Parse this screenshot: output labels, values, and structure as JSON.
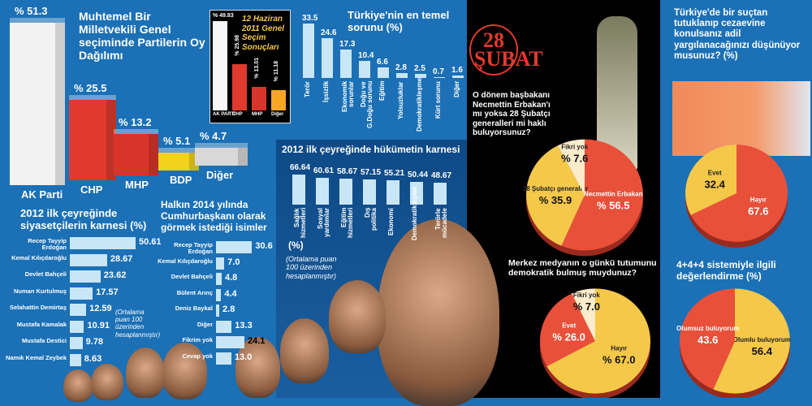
{
  "texts": {
    "main_title": "Muhtemel Bir Milletvekili Genel seçiminde Partilerin Oy Dağılımı",
    "inset_title": "12 Haziran 2011 Genel Seçim Sonuçları",
    "problem_title": "Türkiye'nin en temel sorunu (%)",
    "gov_title": "2012 ilk çeyreğinde hükümetin karnesi",
    "gov_unit": "(%)",
    "gov_note": "(Ortalama puan 100 üzerinden hesaplanmıştır)",
    "pol_title": "2012 ilk çeyreğinde siyasetçilerin karnesi  (%)",
    "pol_note": "(Ortalama puan 100 üzerinden hesaplanmıştır)",
    "pres_title": "Halkın 2014 yılında Cumhurbaşkanı olarak görmek istediği isimler",
    "subat_logo": "28 ŞUBAT",
    "subat_q": "O dönem başbakanı Necmettin Erbakan'ı mı yoksa 28 Şubatçı generalleri mi haklı buluyorsunuz?",
    "jail_q": "Türkiye'de bir suçtan tutuklanıp cezaevine konulsanız adil yargılanacağınızı düşünüyor musunuz? (%)",
    "media_q": "Merkez medyanın o günkü tutumunu demokratik bulmuş muydunuz?",
    "edu_q": "4+4+4  sistemiyle ilgili değerlendirme (%)"
  },
  "colors": {
    "bg": "#1b70b6",
    "bar": "#c9e6f7",
    "red": "#e8503a",
    "yellow": "#f5c84a",
    "cream": "#fbeccb",
    "ak": "#f2f2f2",
    "chp": "#e03a2e",
    "mhp": "#d9342a",
    "bdp": "#f2d21c",
    "other": "#d8d8d8"
  },
  "chart_data": [
    {
      "id": "main",
      "type": "bar",
      "title": "Muhtemel Bir Milletvekili Genel seçiminde Partilerin Oy Dağılımı",
      "categories": [
        "AK Parti",
        "CHP",
        "MHP",
        "BDP",
        "Diğer"
      ],
      "values": [
        51.3,
        25.5,
        13.2,
        5.1,
        4.7
      ],
      "labels": [
        "% 51.3",
        "% 25.5",
        "% 13.2",
        "% 5.1",
        "% 4.7"
      ]
    },
    {
      "id": "inset",
      "type": "bar",
      "title": "12 Haziran 2011 Genel Seçim Sonuçları",
      "categories": [
        "AK PARTİ",
        "CHP",
        "MHP",
        "Diğer"
      ],
      "values": [
        49.83,
        25.98,
        13.01,
        11.18
      ],
      "labels": [
        "% 49.83",
        "% 25.98",
        "% 13.01",
        "% 11.18"
      ]
    },
    {
      "id": "problem",
      "type": "bar",
      "title": "Türkiye'nin en temel sorunu (%)",
      "categories": [
        "Terör",
        "İşsizlik",
        "Ekonomik sorunlar",
        "Doğu ve G.Doğu sorunu",
        "Eğitim",
        "Yolsuzluklar",
        "Demokratikleşme",
        "Kürt sorunu",
        "Diğer"
      ],
      "values": [
        33.5,
        24.6,
        17.3,
        10.4,
        6.6,
        2.8,
        2.5,
        0.7,
        1.6
      ],
      "labels": [
        "33.5",
        "24.6",
        "17.3",
        "10.4",
        "6.6",
        "2.8",
        "2.5",
        "0.7",
        "1.6"
      ]
    },
    {
      "id": "gov",
      "type": "bar",
      "title": "2012 ilk çeyreğinde hükümetin karnesi",
      "categories": [
        "Sağlık hizmetleri",
        "Sosyal yardımlar",
        "Eğitim hizmetleri",
        "Dış politika",
        "Ekonomi",
        "Demokratikleşme",
        "Terörle mücadele"
      ],
      "values": [
        66.64,
        60.61,
        58.67,
        57.15,
        55.21,
        50.44,
        48.67
      ],
      "labels": [
        "66.64",
        "60.61",
        "58.67",
        "57.15",
        "55.21",
        "50.44",
        "48.67"
      ]
    },
    {
      "id": "pol",
      "type": "hbar",
      "title": "2012 ilk çeyreğinde siyasetçilerin karnesi (%)",
      "categories": [
        "Recep Tayyip Erdoğan",
        "Kemal Kılıçdaroğlu",
        "Devlet Bahçeli",
        "Numan Kurtulmuş",
        "Selahattin Demirtaş",
        "Mustafa Kamalak",
        "Mustafa Destici",
        "Namık Kemal Zeybek"
      ],
      "values": [
        50.61,
        28.67,
        23.62,
        17.57,
        12.59,
        10.91,
        9.78,
        8.63
      ],
      "labels": [
        "50.61",
        "28.67",
        "23.62",
        "17.57",
        "12.59",
        "10.91",
        "9.78",
        "8.63"
      ]
    },
    {
      "id": "pres",
      "type": "hbar",
      "title": "Halkın 2014 yılında Cumhurbaşkanı olarak görmek istediği isimler",
      "categories": [
        "Recep Tayyip Erdoğan",
        "Kemal Kılıçdaroğlu",
        "Devlet Bahçeli",
        "Bülent Arınç",
        "Deniz Baykal",
        "Diğer",
        "Fikrim yok",
        "Cevap yok"
      ],
      "values": [
        30.6,
        7.0,
        4.8,
        4.4,
        2.8,
        13.3,
        24.1,
        13.0
      ],
      "labels": [
        "30.6",
        "7.0",
        "4.8",
        "4.4",
        "2.8",
        "13.3",
        "24.1",
        "13.0"
      ]
    },
    {
      "id": "subat",
      "type": "pie",
      "title": "O dönem başbakanı Necmettin Erbakan'ı mı yoksa 28 Şubatçı generalleri mi haklı buluyorsunuz?",
      "categories": [
        "Necmettin Erbakan",
        "28 Şubatçı generaller",
        "Fikri yok"
      ],
      "values": [
        56.5,
        35.9,
        7.6
      ],
      "labels": [
        "% 56.5",
        "% 35.9",
        "% 7.6"
      ],
      "colors": [
        "#e8503a",
        "#f5c84a",
        "#fbeccb"
      ]
    },
    {
      "id": "jail",
      "type": "pie",
      "title": "Türkiye'de bir suçtan tutuklanıp cezaevine konulsanız adil yargılanacağınızı düşünüyor musunuz? (%)",
      "categories": [
        "Hayır",
        "Evet"
      ],
      "values": [
        67.6,
        32.4
      ],
      "labels": [
        "67.6",
        "32.4"
      ],
      "colors": [
        "#e8503a",
        "#f5c84a"
      ]
    },
    {
      "id": "media",
      "type": "pie",
      "title": "Merkez medyanın o günkü tutumunu demokratik bulmuş muydunuz?",
      "categories": [
        "Hayır",
        "Evet",
        "Fikri yok"
      ],
      "values": [
        67.0,
        26.0,
        7.0
      ],
      "labels": [
        "% 67.0",
        "% 26.0",
        "% 7.0"
      ],
      "colors": [
        "#f5c84a",
        "#e8503a",
        "#fbeccb"
      ]
    },
    {
      "id": "edu",
      "type": "pie",
      "title": "4+4+4 sistemiyle ilgili değerlendirme (%)",
      "categories": [
        "Olumlu buluyorum",
        "Olumsuz buluyorum"
      ],
      "values": [
        56.4,
        43.6
      ],
      "labels": [
        "56.4",
        "43.6"
      ],
      "colors": [
        "#f5c84a",
        "#e8503a"
      ]
    }
  ]
}
